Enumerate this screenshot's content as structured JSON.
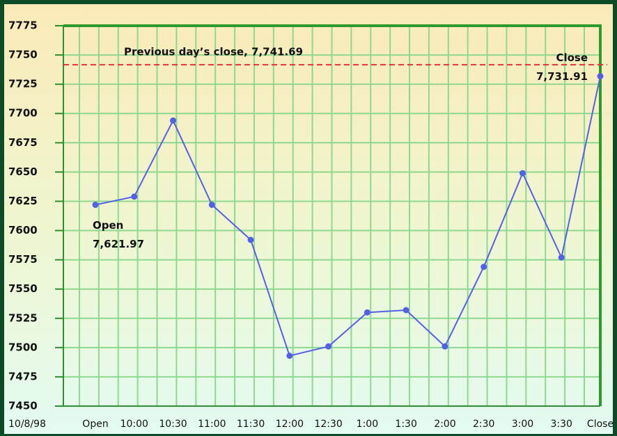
{
  "chart_data": {
    "type": "line",
    "date_label": "10/8/98",
    "categories": [
      "Open",
      "10:00",
      "10:30",
      "11:00",
      "11:30",
      "12:00",
      "12:30",
      "1:00",
      "1:30",
      "2:00",
      "2:30",
      "3:00",
      "3:30",
      "Close"
    ],
    "values": [
      7621.97,
      7629,
      7694,
      7622,
      7592,
      7493,
      7501,
      7530,
      7532,
      7501,
      7569,
      7649,
      7577,
      7731.91
    ],
    "value_labels": [
      "7,621.97",
      null,
      null,
      null,
      null,
      null,
      null,
      null,
      null,
      null,
      null,
      null,
      null,
      "7,731.91"
    ],
    "color": "#5560e8",
    "ylim": [
      7450,
      7775
    ],
    "yticks": [
      7450,
      7475,
      7500,
      7525,
      7550,
      7575,
      7600,
      7625,
      7650,
      7675,
      7700,
      7725,
      7750,
      7775
    ],
    "grid": true,
    "reference_line": {
      "label": "Previous day’s close, 7,741.69",
      "value": 7741.69,
      "color": "#e83030"
    }
  }
}
